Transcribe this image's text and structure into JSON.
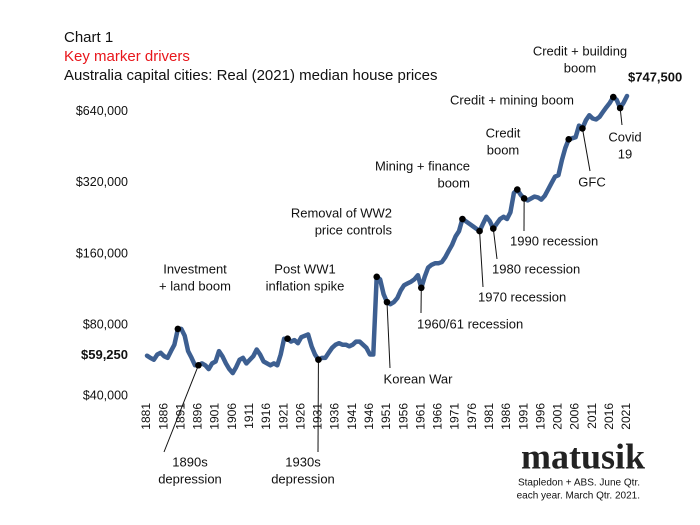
{
  "chart_data": {
    "type": "line",
    "header": "Chart 1",
    "subtitle": "Key marker drivers",
    "title": "Australia capital cities: Real (2021) median house prices",
    "log_scale": true,
    "xlim": [
      1881,
      2021
    ],
    "ylim": [
      40000,
      900000
    ],
    "xticks": [
      1881,
      1886,
      1891,
      1896,
      1901,
      1906,
      1911,
      1916,
      1921,
      1926,
      1931,
      1936,
      1941,
      1946,
      1951,
      1956,
      1961,
      1966,
      1971,
      1976,
      1981,
      1986,
      1991,
      1996,
      2001,
      2006,
      2011,
      2016,
      2021
    ],
    "yticks": [
      {
        "value": 40000,
        "label": "$40,000"
      },
      {
        "value": 80000,
        "label": "$80,000"
      },
      {
        "value": 160000,
        "label": "$160,000"
      },
      {
        "value": 320000,
        "label": "$320,000"
      },
      {
        "value": 640000,
        "label": "$640,000"
      }
    ],
    "x": [
      1881,
      1882,
      1883,
      1884,
      1885,
      1886,
      1887,
      1888,
      1889,
      1890,
      1891,
      1892,
      1893,
      1894,
      1895,
      1896,
      1897,
      1898,
      1899,
      1900,
      1901,
      1902,
      1903,
      1904,
      1905,
      1906,
      1907,
      1908,
      1909,
      1910,
      1911,
      1912,
      1913,
      1914,
      1915,
      1916,
      1917,
      1918,
      1919,
      1920,
      1921,
      1922,
      1923,
      1924,
      1925,
      1926,
      1927,
      1928,
      1929,
      1930,
      1931,
      1932,
      1933,
      1934,
      1935,
      1936,
      1937,
      1938,
      1939,
      1940,
      1941,
      1942,
      1943,
      1944,
      1945,
      1946,
      1947,
      1948,
      1949,
      1950,
      1951,
      1952,
      1953,
      1954,
      1955,
      1956,
      1957,
      1958,
      1959,
      1960,
      1961,
      1962,
      1963,
      1964,
      1965,
      1966,
      1967,
      1968,
      1969,
      1970,
      1971,
      1972,
      1973,
      1974,
      1975,
      1976,
      1977,
      1978,
      1979,
      1980,
      1981,
      1982,
      1983,
      1984,
      1985,
      1986,
      1987,
      1988,
      1989,
      1990,
      1991,
      1992,
      1993,
      1994,
      1995,
      1996,
      1997,
      1998,
      1999,
      2000,
      2001,
      2002,
      2003,
      2004,
      2005,
      2006,
      2007,
      2008,
      2009,
      2010,
      2011,
      2012,
      2013,
      2014,
      2015,
      2016,
      2017,
      2018,
      2019,
      2020,
      2021
    ],
    "series": [
      {
        "color": "#3d5f91",
        "values": [
          59250,
          58000,
          57000,
          60000,
          61000,
          59000,
          58000,
          62000,
          66000,
          77000,
          77000,
          72000,
          62000,
          58000,
          54000,
          54000,
          55000,
          54000,
          52000,
          55000,
          56000,
          62000,
          59000,
          55000,
          52000,
          50000,
          53000,
          57000,
          58000,
          55000,
          57000,
          59000,
          63000,
          60000,
          56000,
          55000,
          54000,
          55000,
          54000,
          60000,
          70000,
          70000,
          68000,
          69000,
          67000,
          71000,
          72000,
          73000,
          65000,
          60000,
          57000,
          58000,
          58000,
          61000,
          64000,
          66000,
          67000,
          66000,
          66000,
          65000,
          66000,
          68000,
          68000,
          66000,
          64000,
          60000,
          60000,
          128000,
          125000,
          108000,
          100000,
          98000,
          100000,
          104000,
          112000,
          118000,
          120000,
          122000,
          125000,
          130000,
          115000,
          128000,
          140000,
          144000,
          146000,
          146000,
          148000,
          155000,
          165000,
          175000,
          190000,
          200000,
          225000,
          220000,
          215000,
          210000,
          205000,
          200000,
          215000,
          230000,
          220000,
          205000,
          215000,
          225000,
          230000,
          225000,
          240000,
          290000,
          300000,
          285000,
          275000,
          270000,
          275000,
          280000,
          278000,
          272000,
          282000,
          300000,
          320000,
          340000,
          345000,
          400000,
          450000,
          490000,
          495000,
          500000,
          560000,
          545000,
          590000,
          620000,
          600000,
          595000,
          610000,
          640000,
          670000,
          700000,
          740000,
          720000,
          665000,
          700000,
          747500
        ]
      }
    ],
    "highlights": [
      {
        "x": 1881,
        "label": "$59,250"
      },
      {
        "x": 2021,
        "label": "$747,500"
      }
    ],
    "annotations": [
      {
        "x": 1890,
        "lines": [
          "Investment",
          "+ land boom"
        ]
      },
      {
        "x": 1896,
        "lines": [
          "1890s",
          "depression"
        ]
      },
      {
        "x": 1922,
        "lines": [
          "Post WW1",
          "inflation spike"
        ]
      },
      {
        "x": 1931,
        "lines": [
          "1930s",
          "depression"
        ]
      },
      {
        "x": 1948,
        "lines": [
          "Removal of WW2",
          "price controls"
        ]
      },
      {
        "x": 1951,
        "lines": [
          "Korean War"
        ]
      },
      {
        "x": 1973,
        "lines": [
          "Mining + finance",
          "boom"
        ]
      },
      {
        "x": 1961,
        "lines": [
          "1960/61 recession"
        ]
      },
      {
        "x": 1978,
        "lines": [
          "1970 recession"
        ]
      },
      {
        "x": 1982,
        "lines": [
          "1980 recession"
        ]
      },
      {
        "x": 1991,
        "lines": [
          "1990 recession"
        ]
      },
      {
        "x": 1989,
        "lines": [
          "Credit",
          "boom"
        ]
      },
      {
        "x": 2004,
        "lines": [
          "Credit + mining boom"
        ]
      },
      {
        "x": 2008,
        "lines": [
          "GFC"
        ]
      },
      {
        "x": 2017,
        "lines": [
          "Credit + building",
          "boom"
        ]
      },
      {
        "x": 2019,
        "lines": [
          "Covid",
          "19"
        ]
      }
    ],
    "logo": "matusik",
    "source": [
      "Stapledon + ABS.  June Qtr.",
      "each year.  March Qtr. 2021."
    ]
  }
}
